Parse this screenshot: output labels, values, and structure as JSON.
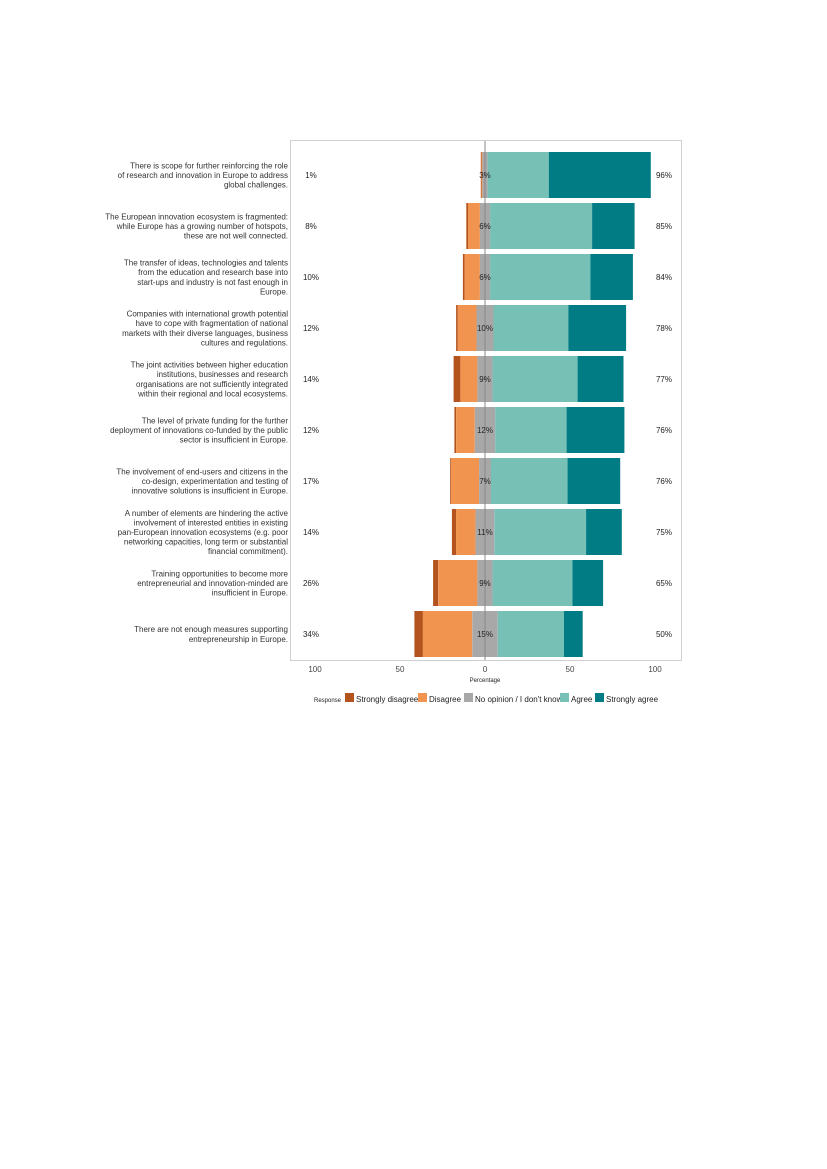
{
  "chart_data": {
    "type": "bar",
    "subtype": "diverging-stacked-likert",
    "xlabel": "Percentage",
    "xlim": [
      -100,
      100
    ],
    "xticks": [
      -100,
      -50,
      0,
      50,
      100
    ],
    "xtick_labels": [
      "100",
      "50",
      "0",
      "50",
      "100"
    ],
    "legend": {
      "title": "Response",
      "placement": "bottom",
      "labels": [
        "Strongly disagree",
        "Disagree",
        "No opinion / I don't know",
        "Agree",
        "Strongly agree"
      ]
    },
    "colors": [
      "#b3541e",
      "#f0944f",
      "#a8a8a8",
      "#76c0b6",
      "#027c84"
    ],
    "categories": [
      {
        "label": [
          "There is scope for further reinforcing the role",
          "of research and innovation in Europe to address",
          "global challenges."
        ],
        "left_label": "1%",
        "center_label": "3%",
        "right_label": "96%"
      },
      {
        "label": [
          "The European innovation ecosystem is fragmented:",
          "while Europe has a growing number of hotspots,",
          "these are not well connected."
        ],
        "left_label": "8%",
        "center_label": "6%",
        "right_label": "85%"
      },
      {
        "label": [
          "The transfer of ideas, technologies and talents",
          "from the education and research base into",
          "start-ups and industry is not fast enough in",
          "Europe."
        ],
        "left_label": "10%",
        "center_label": "6%",
        "right_label": "84%"
      },
      {
        "label": [
          "Companies with international growth potential",
          "have to cope with fragmentation of national",
          "markets with their diverse languages, business",
          "cultures and regulations."
        ],
        "left_label": "12%",
        "center_label": "10%",
        "right_label": "78%"
      },
      {
        "label": [
          "The joint activities between higher education",
          "institutions, businesses and research",
          "organisations are not sufficiently integrated",
          "within their regional and local ecosystems."
        ],
        "left_label": "14%",
        "center_label": "9%",
        "right_label": "77%"
      },
      {
        "label": [
          "The level of private funding for the further",
          "deployment of innovations co-funded by the public",
          "sector is insufficient in Europe."
        ],
        "left_label": "12%",
        "center_label": "12%",
        "right_label": "76%"
      },
      {
        "label": [
          "The involvement of end-users and citizens in the",
          "co-design, experimentation and testing of",
          "innovative solutions is insufficient in Europe."
        ],
        "left_label": "17%",
        "center_label": "7%",
        "right_label": "76%"
      },
      {
        "label": [
          "A number of elements are hindering the active",
          "involvement of interested entities in existing",
          "pan-European innovation ecosystems (e.g. poor",
          "networking capacities, long term or substantial",
          "financial commitment)."
        ],
        "left_label": "14%",
        "center_label": "11%",
        "right_label": "75%"
      },
      {
        "label": [
          "Training opportunities to become more",
          "entrepreneurial and innovation-minded are",
          "insufficient in Europe."
        ],
        "left_label": "26%",
        "center_label": "9%",
        "right_label": "65%"
      },
      {
        "label": [
          "There are not enough measures supporting",
          "entrepreneurship in Europe."
        ],
        "left_label": "34%",
        "center_label": "15%",
        "right_label": "50%"
      }
    ],
    "series": [
      {
        "name": "Strongly disagree",
        "values": [
          0.5,
          1,
          1,
          1,
          4,
          1,
          0.5,
          2.5,
          3,
          5
        ]
      },
      {
        "name": "Disagree",
        "values": [
          0.5,
          7,
          9,
          11,
          10,
          11,
          16.5,
          11.5,
          23,
          29
        ]
      },
      {
        "name": "No opinion / I don't know",
        "values": [
          3,
          6,
          6,
          10,
          9,
          12,
          7,
          11,
          9,
          15
        ]
      },
      {
        "name": "Agree",
        "values": [
          36,
          60,
          59,
          44,
          50,
          42,
          45,
          54,
          47,
          39
        ]
      },
      {
        "name": "Strongly agree",
        "values": [
          60,
          25,
          25,
          34,
          27,
          34,
          31,
          21,
          18,
          11
        ]
      }
    ]
  }
}
